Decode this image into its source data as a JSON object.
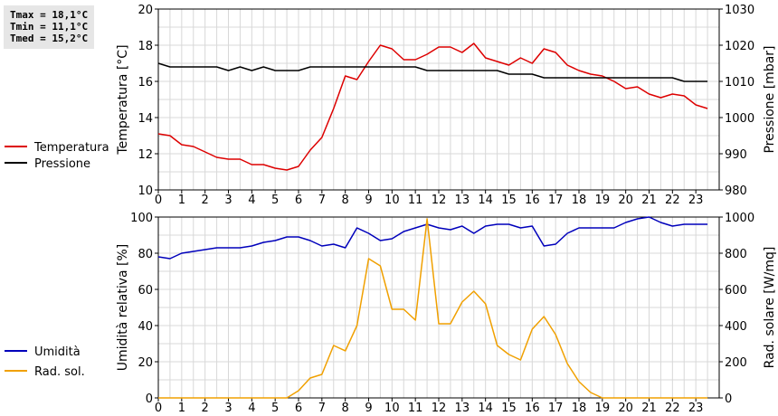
{
  "stats": {
    "tmax": "Tmax = 18,1°C",
    "tmin": "Tmin = 11,1°C",
    "tmed": "Tmed = 15,2°C"
  },
  "chart_data": [
    {
      "type": "line",
      "title": "",
      "xlabel": "",
      "ylabel": "Temperatura [°C]",
      "ylabel_right": "Pressione [mbar]",
      "grid": true,
      "legend_position": "left",
      "xlim": [
        0,
        24
      ],
      "ylim": [
        10,
        20
      ],
      "ylim_right": [
        980,
        1030
      ],
      "x_ticks": [
        "0",
        "1",
        "2",
        "3",
        "4",
        "5",
        "6",
        "7",
        "8",
        "9",
        "10",
        "11",
        "12",
        "13",
        "14",
        "15",
        "16",
        "17",
        "18",
        "19",
        "20",
        "21",
        "22",
        "23"
      ],
      "y_ticks": [
        "10",
        "12",
        "14",
        "16",
        "18",
        "20"
      ],
      "y_ticks_right": [
        "980",
        "990",
        "1000",
        "1010",
        "1020",
        "1030"
      ],
      "series": [
        {
          "name": "Temperatura",
          "axis": "left",
          "color": "#dd0000",
          "x": [
            0,
            0.5,
            1,
            1.5,
            2,
            2.5,
            3,
            3.5,
            4,
            4.5,
            5,
            5.5,
            6,
            6.5,
            7,
            7.5,
            8,
            8.5,
            9,
            9.5,
            10,
            10.5,
            11,
            11.5,
            12,
            12.5,
            13,
            13.5,
            14,
            14.5,
            15,
            15.5,
            16,
            16.5,
            17,
            17.5,
            18,
            18.5,
            19,
            19.5,
            20,
            20.5,
            21,
            21.5,
            22,
            22.5,
            23,
            23.5
          ],
          "values": [
            13.1,
            13.0,
            12.5,
            12.4,
            12.1,
            11.8,
            11.7,
            11.7,
            11.4,
            11.4,
            11.2,
            11.1,
            11.3,
            12.2,
            12.9,
            14.5,
            16.3,
            16.1,
            17.1,
            18.0,
            17.8,
            17.2,
            17.2,
            17.5,
            17.9,
            17.9,
            17.6,
            18.1,
            17.3,
            17.1,
            16.9,
            17.3,
            17.0,
            17.8,
            17.6,
            16.9,
            16.6,
            16.4,
            16.3,
            16.0,
            15.6,
            15.7,
            15.3,
            15.1,
            15.3,
            15.2,
            14.7,
            14.5
          ]
        },
        {
          "name": "Pressione",
          "axis": "right",
          "color": "#000000",
          "x": [
            0,
            0.5,
            1,
            1.5,
            2,
            2.5,
            3,
            3.5,
            4,
            4.5,
            5,
            5.5,
            6,
            6.5,
            7,
            7.5,
            8,
            8.5,
            9,
            9.5,
            10,
            10.5,
            11,
            11.5,
            12,
            12.5,
            13,
            13.5,
            14,
            14.5,
            15,
            15.5,
            16,
            16.5,
            17,
            17.5,
            18,
            18.5,
            19,
            19.5,
            20,
            20.5,
            21,
            21.5,
            22,
            22.5,
            23,
            23.5
          ],
          "values": [
            1015,
            1014,
            1014,
            1014,
            1014,
            1014,
            1013,
            1014,
            1013,
            1014,
            1013,
            1013,
            1013,
            1014,
            1014,
            1014,
            1014,
            1014,
            1014,
            1014,
            1014,
            1014,
            1014,
            1013,
            1013,
            1013,
            1013,
            1013,
            1013,
            1013,
            1012,
            1012,
            1012,
            1011,
            1011,
            1011,
            1011,
            1011,
            1011,
            1011,
            1011,
            1011,
            1011,
            1011,
            1011,
            1010,
            1010,
            1010
          ]
        }
      ]
    },
    {
      "type": "line",
      "title": "",
      "xlabel": "",
      "ylabel": "Umidità relativa [%]",
      "ylabel_right": "Rad. solare [W/mq]",
      "grid": true,
      "legend_position": "left",
      "xlim": [
        0,
        24
      ],
      "ylim": [
        0,
        100
      ],
      "ylim_right": [
        0,
        1000
      ],
      "x_ticks": [
        "0",
        "1",
        "2",
        "3",
        "4",
        "5",
        "6",
        "7",
        "8",
        "9",
        "10",
        "11",
        "12",
        "13",
        "14",
        "15",
        "16",
        "17",
        "18",
        "19",
        "20",
        "21",
        "22",
        "23"
      ],
      "y_ticks": [
        "0",
        "20",
        "40",
        "60",
        "80",
        "100"
      ],
      "y_ticks_right": [
        "0",
        "200",
        "400",
        "600",
        "800",
        "1000"
      ],
      "series": [
        {
          "name": "Umidità",
          "axis": "left",
          "color": "#0000bb",
          "x": [
            0,
            0.5,
            1,
            1.5,
            2,
            2.5,
            3,
            3.5,
            4,
            4.5,
            5,
            5.5,
            6,
            6.5,
            7,
            7.5,
            8,
            8.5,
            9,
            9.5,
            10,
            10.5,
            11,
            11.5,
            12,
            12.5,
            13,
            13.5,
            14,
            14.5,
            15,
            15.5,
            16,
            16.5,
            17,
            17.5,
            18,
            18.5,
            19,
            19.5,
            20,
            20.5,
            21,
            21.5,
            22,
            22.5,
            23,
            23.5
          ],
          "values": [
            78,
            77,
            80,
            81,
            82,
            83,
            83,
            83,
            84,
            86,
            87,
            89,
            89,
            87,
            84,
            85,
            83,
            94,
            91,
            87,
            88,
            92,
            94,
            96,
            94,
            93,
            95,
            91,
            95,
            96,
            96,
            94,
            95,
            84,
            85,
            91,
            94,
            94,
            94,
            94,
            97,
            99,
            100,
            97,
            95,
            96,
            96,
            96
          ]
        },
        {
          "name": "Rad. sol.",
          "axis": "right",
          "color": "#f0a000",
          "x": [
            0,
            0.5,
            1,
            1.5,
            2,
            2.5,
            3,
            3.5,
            4,
            4.5,
            5,
            5.5,
            6,
            6.5,
            7,
            7.5,
            8,
            8.5,
            9,
            9.5,
            10,
            10.5,
            11,
            11.5,
            12,
            12.5,
            13,
            13.5,
            14,
            14.5,
            15,
            15.5,
            16,
            16.5,
            17,
            17.5,
            18,
            18.5,
            19,
            19.5,
            20,
            20.5,
            21,
            21.5,
            22,
            22.5,
            23,
            23.5
          ],
          "values": [
            0,
            0,
            0,
            0,
            0,
            0,
            0,
            0,
            0,
            0,
            0,
            0,
            40,
            110,
            130,
            290,
            260,
            400,
            770,
            730,
            490,
            490,
            430,
            990,
            410,
            410,
            530,
            590,
            520,
            290,
            240,
            210,
            380,
            450,
            350,
            190,
            90,
            30,
            0,
            0,
            0,
            0,
            0,
            0,
            0,
            0,
            0,
            0
          ]
        }
      ]
    }
  ]
}
